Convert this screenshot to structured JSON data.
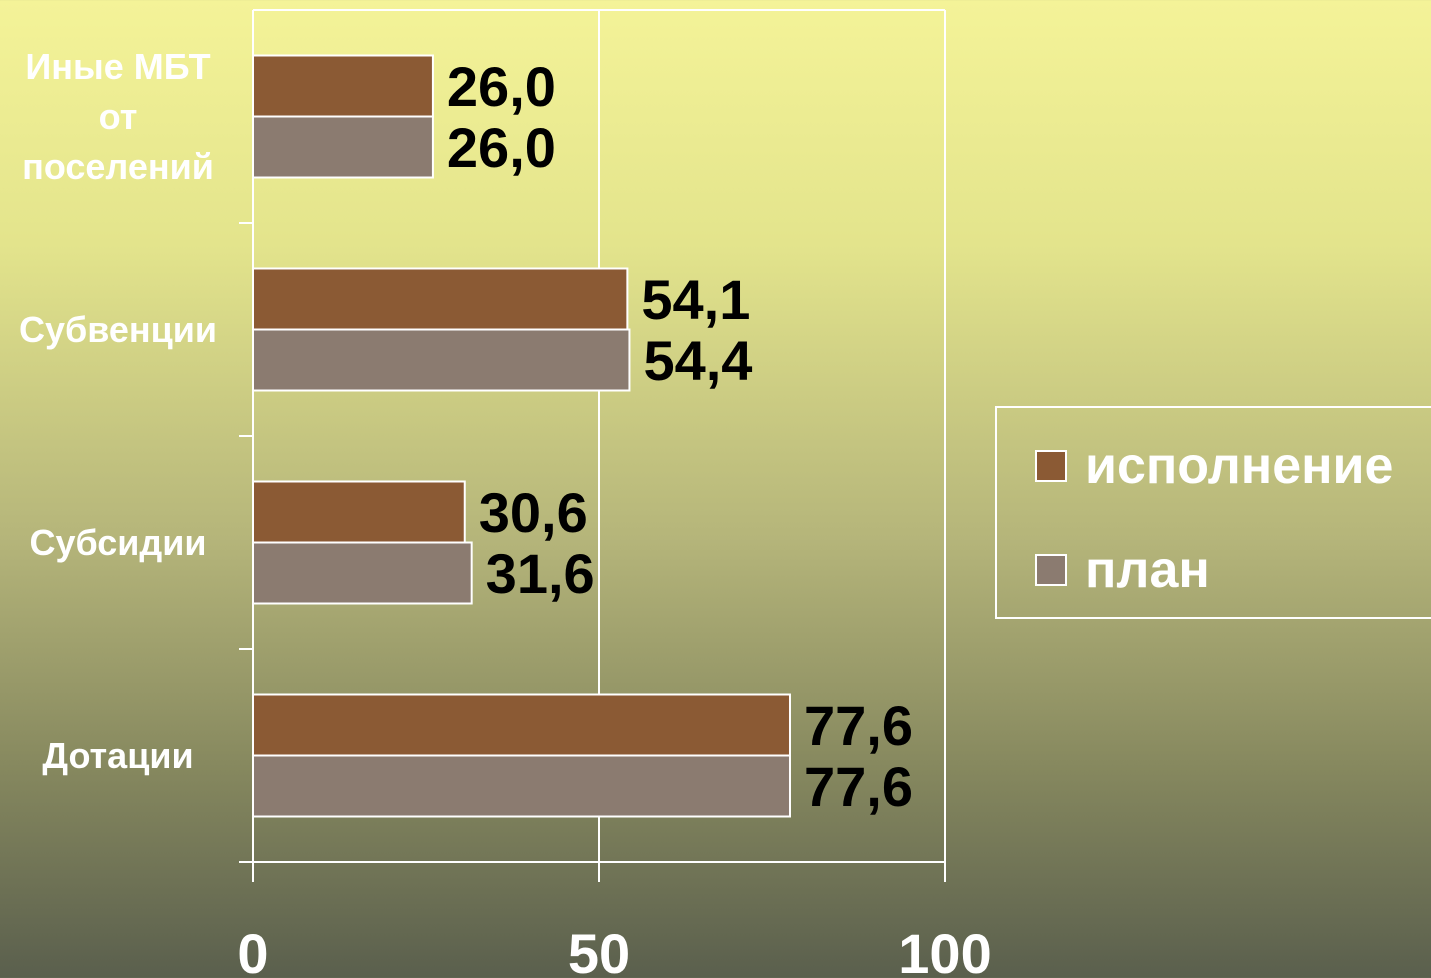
{
  "chart_data": {
    "type": "bar",
    "orientation": "horizontal",
    "categories": [
      "Иные МБТ от поселений",
      "Субвенции",
      "Субсидии",
      "Дотации"
    ],
    "category_lines": [
      [
        "Иные МБТ",
        "от",
        "поселений"
      ],
      [
        "Субвенции"
      ],
      [
        "Субсидии"
      ],
      [
        "Дотации"
      ]
    ],
    "series": [
      {
        "name": "исполнение",
        "values": [
          26.0,
          54.1,
          30.6,
          77.6
        ],
        "labels": [
          "26,0",
          "54,1",
          "30,6",
          "77,6"
        ],
        "color": "#8b5a34"
      },
      {
        "name": "план",
        "values": [
          26.0,
          54.4,
          31.6,
          77.6
        ],
        "labels": [
          "26,0",
          "54,4",
          "31,6",
          "77,6"
        ],
        "color": "#8b7b70"
      }
    ],
    "xlim": [
      0,
      100
    ],
    "xticks": [
      "0",
      "50",
      "100"
    ],
    "grid": true,
    "legend_position": "right"
  }
}
